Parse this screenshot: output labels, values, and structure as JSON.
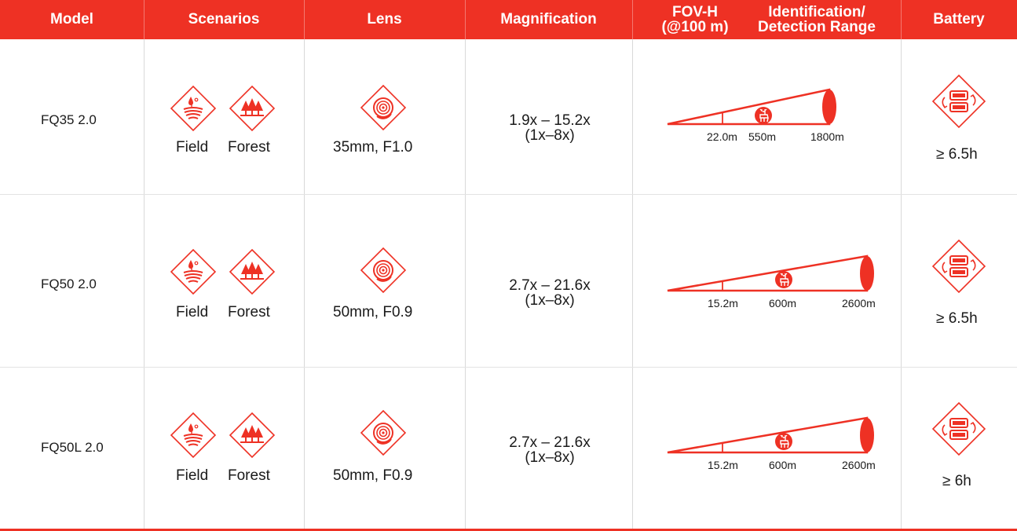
{
  "header": {
    "model": "Model",
    "scenarios": "Scenarios",
    "lens": "Lens",
    "magnification": "Magnification",
    "fov_line1": "FOV-H",
    "fov_line2": "(@100 m)",
    "range_line1": "Identification/",
    "range_line2": "Detection Range",
    "battery": "Battery"
  },
  "colors": {
    "accent": "#ee3124"
  },
  "rows": [
    {
      "model": "FQ35 2.0",
      "scenario_field": "Field",
      "scenario_forest": "Forest",
      "lens": "35mm, F1.0",
      "mag_line1": "1.9x – 15.2x",
      "mag_line2": "(1x–8x)",
      "fov": "22.0m",
      "identification": "550m",
      "detection": "1800m",
      "battery": "≥ 6.5h"
    },
    {
      "model": "FQ50 2.0",
      "scenario_field": "Field",
      "scenario_forest": "Forest",
      "lens": "50mm, F0.9",
      "mag_line1": "2.7x – 21.6x",
      "mag_line2": "(1x–8x)",
      "fov": "15.2m",
      "identification": "600m",
      "detection": "2600m",
      "battery": "≥ 6.5h"
    },
    {
      "model": "FQ50L 2.0",
      "scenario_field": "Field",
      "scenario_forest": "Forest",
      "lens": "50mm, F0.9",
      "mag_line1": "2.7x – 21.6x",
      "mag_line2": "(1x–8x)",
      "fov": "15.2m",
      "identification": "600m",
      "detection": "2600m",
      "battery": "≥ 6h"
    }
  ]
}
